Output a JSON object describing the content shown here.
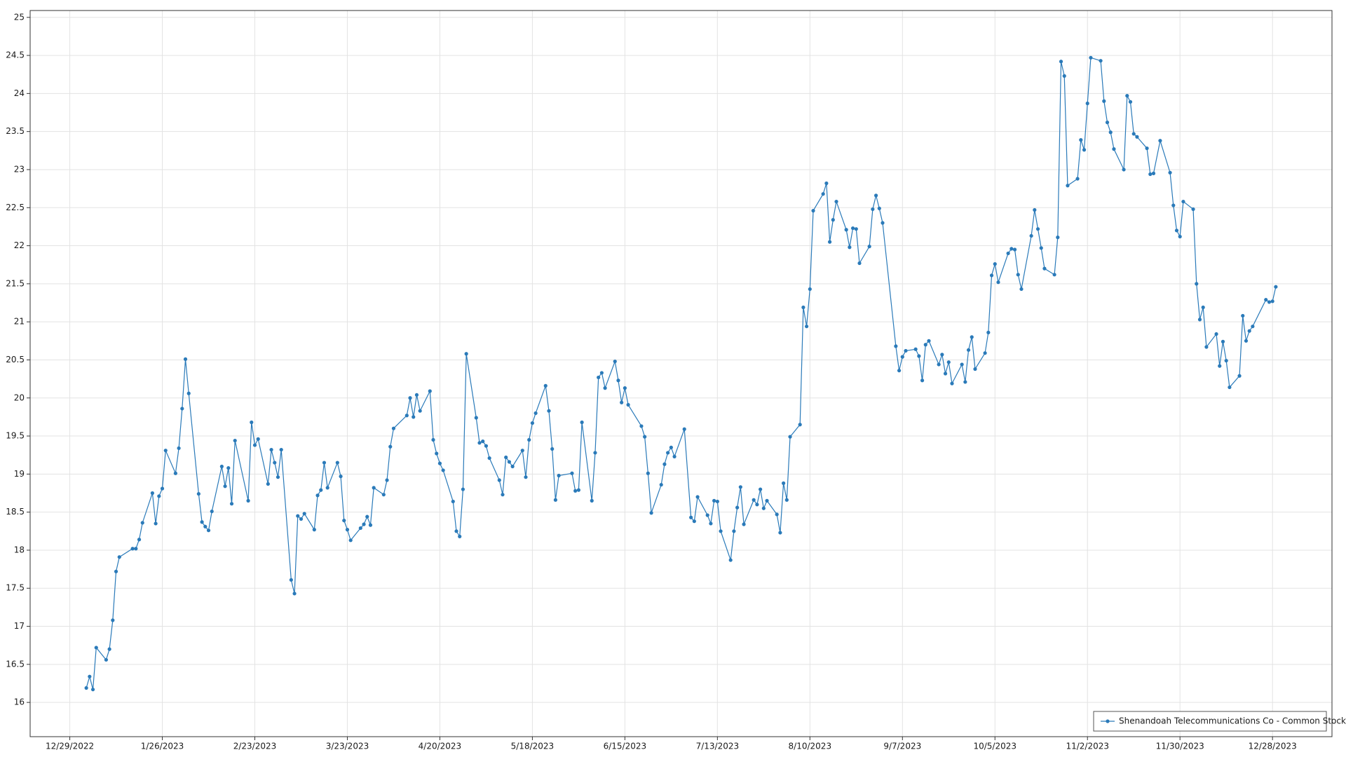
{
  "chart_data": {
    "type": "line",
    "x": [
      "1/3/2023",
      "1/4/2023",
      "1/5/2023",
      "1/6/2023",
      "1/9/2023",
      "1/10/2023",
      "1/11/2023",
      "1/12/2023",
      "1/13/2023",
      "1/17/2023",
      "1/18/2023",
      "1/19/2023",
      "1/20/2023",
      "1/23/2023",
      "1/24/2023",
      "1/25/2023",
      "1/26/2023",
      "1/27/2023",
      "1/30/2023",
      "1/31/2023",
      "2/1/2023",
      "2/2/2023",
      "2/3/2023",
      "2/6/2023",
      "2/7/2023",
      "2/8/2023",
      "2/9/2023",
      "2/10/2023",
      "2/13/2023",
      "2/14/2023",
      "2/15/2023",
      "2/16/2023",
      "2/17/2023",
      "2/21/2023",
      "2/22/2023",
      "2/23/2023",
      "2/24/2023",
      "2/27/2023",
      "2/28/2023",
      "3/1/2023",
      "3/2/2023",
      "3/3/2023",
      "3/6/2023",
      "3/7/2023",
      "3/8/2023",
      "3/9/2023",
      "3/10/2023",
      "3/13/2023",
      "3/14/2023",
      "3/15/2023",
      "3/16/2023",
      "3/17/2023",
      "3/20/2023",
      "3/21/2023",
      "3/22/2023",
      "3/23/2023",
      "3/24/2023",
      "3/27/2023",
      "3/28/2023",
      "3/29/2023",
      "3/30/2023",
      "3/31/2023",
      "4/3/2023",
      "4/4/2023",
      "4/5/2023",
      "4/6/2023",
      "4/10/2023",
      "4/11/2023",
      "4/12/2023",
      "4/13/2023",
      "4/14/2023",
      "4/17/2023",
      "4/18/2023",
      "4/19/2023",
      "4/20/2023",
      "4/21/2023",
      "4/24/2023",
      "4/25/2023",
      "4/26/2023",
      "4/27/2023",
      "4/28/2023",
      "5/1/2023",
      "5/2/2023",
      "5/3/2023",
      "5/4/2023",
      "5/5/2023",
      "5/8/2023",
      "5/9/2023",
      "5/10/2023",
      "5/11/2023",
      "5/12/2023",
      "5/15/2023",
      "5/16/2023",
      "5/17/2023",
      "5/18/2023",
      "5/19/2023",
      "5/22/2023",
      "5/23/2023",
      "5/24/2023",
      "5/25/2023",
      "5/26/2023",
      "5/30/2023",
      "5/31/2023",
      "6/1/2023",
      "6/2/2023",
      "6/5/2023",
      "6/6/2023",
      "6/7/2023",
      "6/8/2023",
      "6/9/2023",
      "6/12/2023",
      "6/13/2023",
      "6/14/2023",
      "6/15/2023",
      "6/16/2023",
      "6/20/2023",
      "6/21/2023",
      "6/22/2023",
      "6/23/2023",
      "6/26/2023",
      "6/27/2023",
      "6/28/2023",
      "6/29/2023",
      "6/30/2023",
      "7/3/2023",
      "7/5/2023",
      "7/6/2023",
      "7/7/2023",
      "7/10/2023",
      "7/11/2023",
      "7/12/2023",
      "7/13/2023",
      "7/14/2023",
      "7/17/2023",
      "7/18/2023",
      "7/19/2023",
      "7/20/2023",
      "7/21/2023",
      "7/24/2023",
      "7/25/2023",
      "7/26/2023",
      "7/27/2023",
      "7/28/2023",
      "7/31/2023",
      "8/1/2023",
      "8/2/2023",
      "8/3/2023",
      "8/4/2023",
      "8/7/2023",
      "8/8/2023",
      "8/9/2023",
      "8/10/2023",
      "8/11/2023",
      "8/14/2023",
      "8/15/2023",
      "8/16/2023",
      "8/17/2023",
      "8/18/2023",
      "8/21/2023",
      "8/22/2023",
      "8/23/2023",
      "8/24/2023",
      "8/25/2023",
      "8/28/2023",
      "8/29/2023",
      "8/30/2023",
      "8/31/2023",
      "9/1/2023",
      "9/5/2023",
      "9/6/2023",
      "9/7/2023",
      "9/8/2023",
      "9/11/2023",
      "9/12/2023",
      "9/13/2023",
      "9/14/2023",
      "9/15/2023",
      "9/18/2023",
      "9/19/2023",
      "9/20/2023",
      "9/21/2023",
      "9/22/2023",
      "9/25/2023",
      "9/26/2023",
      "9/27/2023",
      "9/28/2023",
      "9/29/2023",
      "10/2/2023",
      "10/3/2023",
      "10/4/2023",
      "10/5/2023",
      "10/6/2023",
      "10/9/2023",
      "10/10/2023",
      "10/11/2023",
      "10/12/2023",
      "10/13/2023",
      "10/16/2023",
      "10/17/2023",
      "10/18/2023",
      "10/19/2023",
      "10/20/2023",
      "10/23/2023",
      "10/24/2023",
      "10/25/2023",
      "10/26/2023",
      "10/27/2023",
      "10/30/2023",
      "10/31/2023",
      "11/1/2023",
      "11/2/2023",
      "11/3/2023",
      "11/6/2023",
      "11/7/2023",
      "11/8/2023",
      "11/9/2023",
      "11/10/2023",
      "11/13/2023",
      "11/14/2023",
      "11/15/2023",
      "11/16/2023",
      "11/17/2023",
      "11/20/2023",
      "11/21/2023",
      "11/22/2023",
      "11/24/2023",
      "11/27/2023",
      "11/28/2023",
      "11/29/2023",
      "11/30/2023",
      "12/1/2023",
      "12/4/2023",
      "12/5/2023",
      "12/6/2023",
      "12/7/2023",
      "12/8/2023",
      "12/11/2023",
      "12/12/2023",
      "12/13/2023",
      "12/14/2023",
      "12/15/2023",
      "12/18/2023",
      "12/19/2023",
      "12/20/2023",
      "12/21/2023",
      "12/22/2023",
      "12/26/2023",
      "12/27/2023",
      "12/28/2023",
      "12/29/2023"
    ],
    "series": [
      {
        "name": "Shenandoah Telecommunications Co - Common Stock",
        "color": "#2a7ab9",
        "values": [
          16.19,
          16.34,
          16.17,
          16.72,
          16.56,
          16.7,
          17.08,
          17.72,
          17.91,
          18.02,
          18.02,
          18.14,
          18.36,
          18.75,
          18.35,
          18.71,
          18.81,
          19.31,
          19.01,
          19.34,
          19.86,
          20.51,
          20.06,
          18.74,
          18.37,
          18.31,
          18.26,
          18.51,
          19.1,
          18.84,
          19.08,
          18.61,
          19.44,
          18.65,
          19.68,
          19.38,
          19.46,
          18.87,
          19.32,
          19.15,
          18.96,
          19.32,
          17.61,
          17.43,
          18.45,
          18.41,
          18.48,
          18.27,
          18.72,
          18.79,
          19.15,
          18.82,
          19.15,
          18.97,
          18.39,
          18.27,
          18.13,
          18.29,
          18.34,
          18.44,
          18.33,
          18.82,
          18.73,
          18.92,
          19.36,
          19.6,
          19.77,
          20.0,
          19.75,
          20.04,
          19.83,
          20.09,
          19.45,
          19.27,
          19.14,
          19.05,
          18.64,
          18.25,
          18.18,
          18.8,
          20.58,
          19.74,
          19.41,
          19.43,
          19.37,
          19.21,
          18.92,
          18.73,
          19.22,
          19.16,
          19.1,
          19.31,
          18.96,
          19.45,
          19.67,
          19.8,
          20.16,
          19.83,
          19.33,
          18.66,
          18.98,
          19.01,
          18.78,
          18.79,
          19.68,
          18.65,
          19.28,
          20.27,
          20.33,
          20.13,
          20.48,
          20.23,
          19.94,
          20.13,
          19.91,
          19.63,
          19.49,
          19.01,
          18.49,
          18.86,
          19.13,
          19.28,
          19.35,
          19.23,
          19.59,
          18.43,
          18.38,
          18.7,
          18.46,
          18.35,
          18.65,
          18.64,
          18.25,
          17.87,
          18.25,
          18.56,
          18.83,
          18.34,
          18.66,
          18.6,
          18.8,
          18.55,
          18.65,
          18.47,
          18.23,
          18.88,
          18.66,
          19.49,
          19.65,
          21.19,
          20.94,
          21.43,
          22.46,
          22.68,
          22.82,
          22.05,
          22.34,
          22.58,
          22.21,
          21.98,
          22.23,
          22.22,
          21.77,
          21.99,
          22.48,
          22.66,
          22.49,
          22.3,
          20.68,
          20.36,
          20.54,
          20.62,
          20.64,
          20.55,
          20.23,
          20.7,
          20.75,
          20.44,
          20.57,
          20.32,
          20.47,
          20.19,
          20.44,
          20.21,
          20.63,
          20.8,
          20.38,
          20.59,
          20.86,
          21.61,
          21.76,
          21.52,
          21.9,
          21.96,
          21.95,
          21.62,
          21.43,
          22.13,
          22.47,
          22.22,
          21.97,
          21.7,
          21.62,
          22.11,
          24.42,
          24.23,
          22.79,
          22.88,
          23.39,
          23.26,
          23.87,
          24.47,
          24.43,
          23.9,
          23.62,
          23.49,
          23.27,
          23.0,
          23.97,
          23.89,
          23.47,
          23.43,
          23.28,
          22.94,
          22.95,
          23.38,
          22.96,
          22.53,
          22.2,
          22.12,
          22.58,
          22.48,
          21.5,
          21.03,
          21.19,
          20.67,
          20.84,
          20.42,
          20.74,
          20.49,
          20.14,
          20.29,
          21.08,
          20.75,
          20.88,
          20.94,
          21.29,
          21.26,
          21.27,
          21.46
        ]
      }
    ],
    "xlim": [
      "12/17/2022",
      "1/15/2024"
    ],
    "xticks": [
      "12/29/2022",
      "1/26/2023",
      "2/23/2023",
      "3/23/2023",
      "4/20/2023",
      "5/18/2023",
      "6/15/2023",
      "7/13/2023",
      "8/10/2023",
      "9/7/2023",
      "10/5/2023",
      "11/2/2023",
      "11/30/2023",
      "12/28/2023"
    ],
    "ylim": [
      15.55,
      25.09
    ],
    "yticks": [
      16,
      16.5,
      17,
      17.5,
      18,
      18.5,
      19,
      19.5,
      20,
      20.5,
      21,
      21.5,
      22,
      22.5,
      23,
      23.5,
      24,
      24.5,
      25
    ],
    "grid": true,
    "legend": "lower right"
  }
}
